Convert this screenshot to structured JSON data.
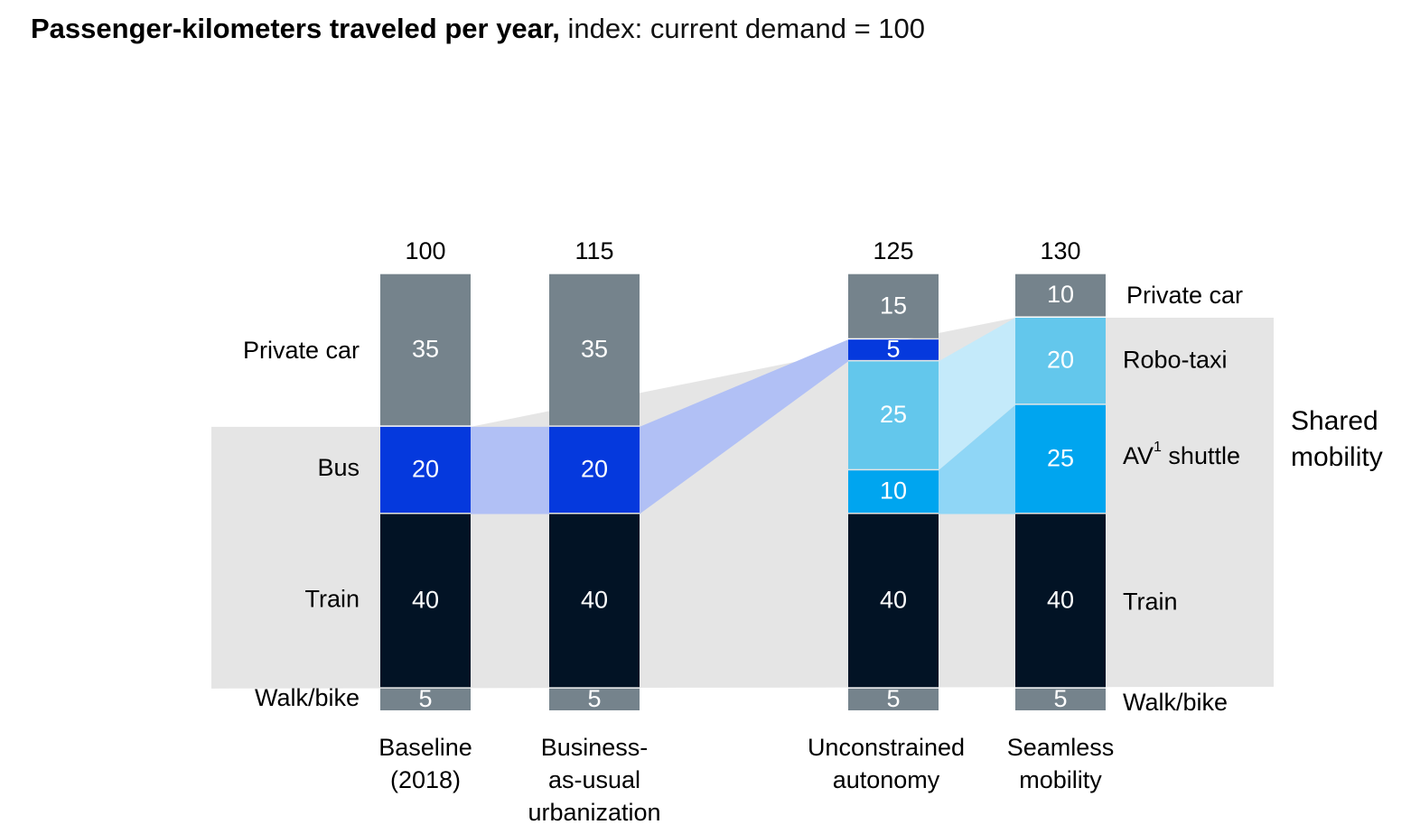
{
  "title": {
    "bold": "Passenger-kilometers traveled per year,",
    "rest": " index: current demand = 100"
  },
  "chart_data": {
    "type": "bar",
    "stacked": true,
    "title": "Passenger-kilometers traveled per year, index: current demand = 100",
    "categories": [
      [
        "Baseline",
        "(2018)"
      ],
      [
        "Business-",
        "as-usual",
        "urbanization"
      ],
      [
        "Unconstrained",
        "autonomy"
      ],
      [
        "Seamless",
        "mobility"
      ]
    ],
    "totals": [
      "100",
      "115",
      "125",
      "130"
    ],
    "bars": [
      [
        {
          "type": "walk",
          "value": 5,
          "label": "5"
        },
        {
          "type": "train",
          "value": 40,
          "label": "40"
        },
        {
          "type": "bus",
          "value": 20,
          "label": "20"
        },
        {
          "type": "car",
          "value": 35,
          "label": "35"
        }
      ],
      [
        {
          "type": "walk",
          "value": 5,
          "label": "5"
        },
        {
          "type": "train",
          "value": 40,
          "label": "40"
        },
        {
          "type": "bus",
          "value": 20,
          "label": "20"
        },
        {
          "type": "car",
          "value": 35,
          "label": "35"
        }
      ],
      [
        {
          "type": "walk",
          "value": 5,
          "label": "5"
        },
        {
          "type": "train",
          "value": 40,
          "label": "40"
        },
        {
          "type": "shuttle",
          "value": 10,
          "label": "10"
        },
        {
          "type": "robotaxi",
          "value": 25,
          "label": "25"
        },
        {
          "type": "bus",
          "value": 5,
          "label": "5"
        },
        {
          "type": "car",
          "value": 15,
          "label": "15"
        }
      ],
      [
        {
          "type": "walk",
          "value": 5,
          "label": "5"
        },
        {
          "type": "train",
          "value": 40,
          "label": "40"
        },
        {
          "type": "shuttle",
          "value": 25,
          "label": "25"
        },
        {
          "type": "robotaxi",
          "value": 20,
          "label": "20"
        },
        {
          "type": "car",
          "value": 10,
          "label": "10"
        }
      ]
    ],
    "left_labels": [
      "Private car",
      "Bus",
      "Train",
      "Walk/bike"
    ],
    "right_labels": [
      "Private car",
      "Robo-taxi",
      "AV",
      "1",
      " shuttle",
      "Train",
      "Walk/bike"
    ],
    "group_label": [
      "Shared",
      "mobility"
    ],
    "colors": {
      "car": "#75838c",
      "walk": "#75838c",
      "bus": "#0539dd",
      "train": "#021325",
      "robotaxi": "#63c7ec",
      "shuttle": "#00a5ef",
      "shared_bg": "#e5e5e5",
      "bus_flow": "#b1c0f5",
      "robotaxi_flow": "#c4eafa",
      "shuttle_flow": "#8fd6f6"
    }
  }
}
